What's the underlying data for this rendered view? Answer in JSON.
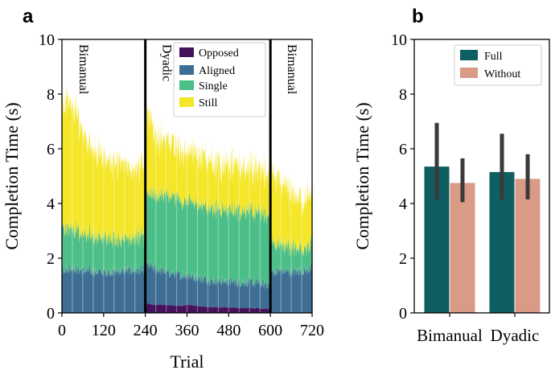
{
  "chart_data": [
    {
      "panel_label": "a",
      "type": "area",
      "title": "",
      "xlabel": "Trial",
      "ylabel": "Completion Time (s)",
      "xlim": [
        0,
        720
      ],
      "ylim": [
        0,
        10
      ],
      "xticks": [
        0,
        120,
        240,
        360,
        480,
        600,
        720
      ],
      "yticks": [
        0,
        2,
        4,
        6,
        8,
        10
      ],
      "grid": "vertical light lines every 30 trials",
      "legend_position": "top-center",
      "phase_boundaries": [
        240,
        600
      ],
      "phases": [
        {
          "label": "Bimanual",
          "start": 0,
          "end": 240
        },
        {
          "label": "Dyadic",
          "start": 240,
          "end": 600
        },
        {
          "label": "Bimanual",
          "start": 600,
          "end": 720
        }
      ],
      "colors": {
        "Opposed": "#46125b",
        "Aligned": "#3e6e94",
        "Single": "#4cbf88",
        "Still": "#f5e629"
      },
      "series": [
        {
          "name": "Opposed",
          "x": [
            0,
            240,
            245,
            260,
            300,
            340,
            360,
            420,
            480,
            540,
            595,
            600,
            720
          ],
          "values": [
            0,
            0,
            0.35,
            0.3,
            0.3,
            0.25,
            0.3,
            0.22,
            0.2,
            0.18,
            0.15,
            0,
            0
          ]
        },
        {
          "name": "Aligned",
          "x": [
            0,
            30,
            60,
            120,
            180,
            239,
            240,
            250,
            300,
            360,
            420,
            480,
            540,
            599,
            600,
            630,
            660,
            720
          ],
          "values": [
            1.6,
            1.65,
            1.55,
            1.5,
            1.55,
            1.55,
            1.4,
            1.4,
            1.2,
            1.1,
            1.0,
            0.95,
            0.95,
            0.9,
            1.5,
            1.55,
            1.5,
            1.6
          ]
        },
        {
          "name": "Single",
          "x": [
            0,
            20,
            60,
            120,
            180,
            239,
            240,
            300,
            360,
            420,
            480,
            540,
            599,
            600,
            640,
            680,
            720
          ],
          "values": [
            1.6,
            1.5,
            1.35,
            1.25,
            1.2,
            1.2,
            2.6,
            2.8,
            2.7,
            2.7,
            2.65,
            2.6,
            2.6,
            1.0,
            0.95,
            0.9,
            0.85
          ]
        },
        {
          "name": "Still",
          "x": [
            0,
            20,
            40,
            60,
            90,
            120,
            180,
            239,
            240,
            270,
            300,
            360,
            420,
            480,
            540,
            599,
            600,
            630,
            660,
            720
          ],
          "values": [
            4.4,
            4.6,
            4.3,
            3.6,
            3.2,
            2.9,
            2.7,
            2.5,
            3.0,
            2.2,
            1.9,
            1.8,
            1.7,
            1.6,
            1.5,
            1.5,
            2.6,
            2.2,
            1.9,
            1.7
          ]
        }
      ]
    },
    {
      "panel_label": "b",
      "type": "bar",
      "title": "",
      "xlabel": "",
      "ylabel": "Completion Time (s)",
      "ylim": [
        0,
        10
      ],
      "yticks": [
        0,
        2,
        4,
        6,
        8,
        10
      ],
      "categories": [
        "Bimanual",
        "Dyadic"
      ],
      "legend_position": "top-right",
      "series": [
        {
          "name": "Full",
          "color": "#0e5e62",
          "values": [
            5.35,
            5.15
          ],
          "error_low": [
            4.15,
            4.15
          ],
          "error_high": [
            6.95,
            6.55
          ]
        },
        {
          "name": "Without",
          "color": "#d99a86",
          "values": [
            4.75,
            4.9
          ],
          "error_low": [
            4.05,
            4.15
          ],
          "error_high": [
            5.65,
            5.8
          ]
        }
      ]
    }
  ]
}
